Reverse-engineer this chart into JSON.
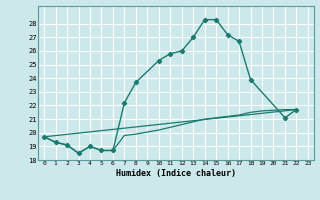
{
  "xlabel": "Humidex (Indice chaleur)",
  "background_color": "#cce8ea",
  "grid_color": "#ffffff",
  "line_color": "#1a7a6e",
  "xmin": 0,
  "xmax": 23,
  "ymin": 18,
  "ymax": 29,
  "yticks": [
    18,
    19,
    20,
    21,
    22,
    23,
    24,
    25,
    26,
    27,
    28
  ],
  "line1_x": [
    0,
    1,
    2,
    3,
    4,
    5,
    6,
    7,
    8,
    10,
    11,
    12,
    13,
    14,
    15,
    16,
    17,
    18,
    21,
    22
  ],
  "line1_y": [
    19.7,
    19.3,
    19.1,
    18.5,
    19.0,
    18.7,
    18.7,
    22.2,
    23.7,
    25.3,
    25.8,
    26.0,
    27.0,
    28.3,
    28.3,
    27.2,
    26.7,
    23.9,
    21.1,
    21.7
  ],
  "line2_x": [
    0,
    1,
    2,
    3,
    4,
    5,
    6,
    7,
    8,
    10,
    11,
    12,
    13,
    14,
    15,
    16,
    17,
    18,
    19,
    20,
    21,
    22
  ],
  "line2_y": [
    19.7,
    19.3,
    19.1,
    18.5,
    19.0,
    18.7,
    18.7,
    19.8,
    19.9,
    20.2,
    20.4,
    20.6,
    20.8,
    21.0,
    21.1,
    21.2,
    21.3,
    21.5,
    21.6,
    21.65,
    21.7,
    21.7
  ],
  "line3_x": [
    0,
    22
  ],
  "line3_y": [
    19.7,
    21.7
  ]
}
